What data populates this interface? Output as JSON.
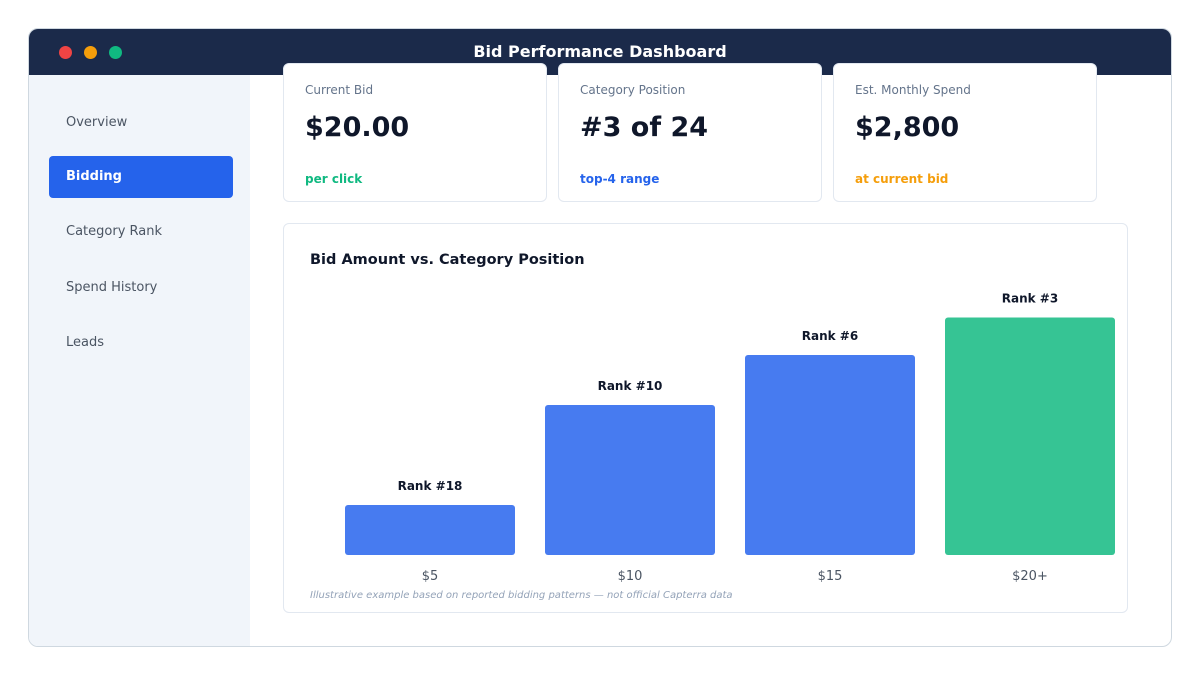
{
  "window": {
    "title": "Bid Performance Dashboard"
  },
  "sidebar": {
    "items": [
      {
        "label": "Overview",
        "active": false
      },
      {
        "label": "Bidding",
        "active": true
      },
      {
        "label": "Category Rank",
        "active": false
      },
      {
        "label": "Spend History",
        "active": false
      },
      {
        "label": "Leads",
        "active": false
      }
    ]
  },
  "cards": [
    {
      "label": "Current Bid",
      "value": "$20.00",
      "sub": "per click",
      "sub_color": "#10b981"
    },
    {
      "label": "Category Position",
      "value": "#3 of 24",
      "sub": "top-4 range",
      "sub_color": "#2563eb"
    },
    {
      "label": "Est. Monthly Spend",
      "value": "$2,800",
      "sub": "at current bid",
      "sub_color": "#f59e0b"
    }
  ],
  "chart_data": {
    "type": "bar",
    "title": "Bid Amount vs. Category Position",
    "categories": [
      "$5",
      "$10",
      "$15",
      "$20+"
    ],
    "values": [
      2,
      6,
      8,
      9.5
    ],
    "data_labels": [
      "Rank #18",
      "Rank #10",
      "Rank #6",
      "Rank #3"
    ],
    "bar_colors": [
      "#477bf0",
      "#477bf0",
      "#477bf0",
      "#36c494"
    ],
    "ylim": [
      0,
      10
    ],
    "grid": false,
    "footnote": "Illustrative example based on reported bidding patterns — not official Capterra data"
  }
}
